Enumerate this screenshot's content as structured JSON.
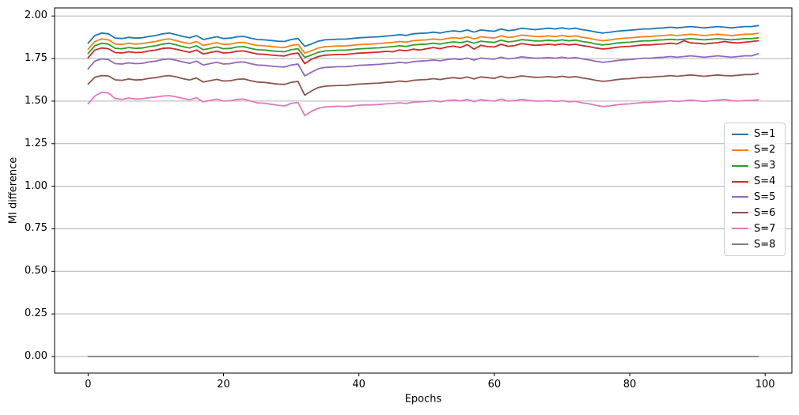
{
  "chart_data": {
    "type": "line",
    "title": "",
    "xlabel": "Epochs",
    "ylabel": "MI difference",
    "x_start": 0,
    "x_step": 1,
    "n_points": 100,
    "xlim": [
      -4.95,
      103.95
    ],
    "ylim": [
      -0.0975,
      2.0475
    ],
    "grid": "horizontal",
    "grid_color": "#b0b0b0",
    "spine_color": "#000000",
    "x_ticks": [
      {
        "v": 0,
        "label": "0"
      },
      {
        "v": 20,
        "label": "20"
      },
      {
        "v": 40,
        "label": "40"
      },
      {
        "v": 60,
        "label": "60"
      },
      {
        "v": 80,
        "label": "80"
      },
      {
        "v": 100,
        "label": "100"
      }
    ],
    "y_ticks": [
      {
        "v": 0.0,
        "label": "0.00"
      },
      {
        "v": 0.25,
        "label": "0.25"
      },
      {
        "v": 0.5,
        "label": "0.50"
      },
      {
        "v": 0.75,
        "label": "0.75"
      },
      {
        "v": 1.0,
        "label": "1.00"
      },
      {
        "v": 1.25,
        "label": "1.25"
      },
      {
        "v": 1.5,
        "label": "1.50"
      },
      {
        "v": 1.75,
        "label": "1.75"
      },
      {
        "v": 2.0,
        "label": "2.00"
      }
    ],
    "legend": {
      "position": "center-right",
      "border_color": "#cccccc"
    },
    "series": [
      {
        "name": "S=1",
        "color": "#1f77b4",
        "values": [
          1.84,
          1.885,
          1.9,
          1.895,
          1.87,
          1.868,
          1.875,
          1.87,
          1.872,
          1.88,
          1.885,
          1.895,
          1.9,
          1.89,
          1.88,
          1.872,
          1.885,
          1.862,
          1.87,
          1.878,
          1.868,
          1.87,
          1.878,
          1.88,
          1.87,
          1.862,
          1.86,
          1.856,
          1.852,
          1.85,
          1.862,
          1.868,
          1.822,
          1.836,
          1.852,
          1.86,
          1.862,
          1.864,
          1.864,
          1.868,
          1.872,
          1.874,
          1.876,
          1.878,
          1.882,
          1.885,
          1.89,
          1.886,
          1.895,
          1.898,
          1.9,
          1.905,
          1.9,
          1.908,
          1.913,
          1.908,
          1.918,
          1.905,
          1.918,
          1.914,
          1.91,
          1.924,
          1.914,
          1.918,
          1.928,
          1.924,
          1.92,
          1.924,
          1.928,
          1.924,
          1.93,
          1.924,
          1.928,
          1.92,
          1.914,
          1.906,
          1.9,
          1.904,
          1.91,
          1.914,
          1.916,
          1.92,
          1.924,
          1.924,
          1.928,
          1.93,
          1.934,
          1.93,
          1.934,
          1.938,
          1.934,
          1.93,
          1.934,
          1.938,
          1.934,
          1.93,
          1.934,
          1.938,
          1.938,
          1.944
        ]
      },
      {
        "name": "S=2",
        "color": "#ff7f0e",
        "values": [
          1.805,
          1.85,
          1.866,
          1.86,
          1.835,
          1.833,
          1.84,
          1.835,
          1.838,
          1.845,
          1.85,
          1.86,
          1.866,
          1.855,
          1.845,
          1.838,
          1.85,
          1.827,
          1.835,
          1.843,
          1.833,
          1.835,
          1.843,
          1.845,
          1.835,
          1.827,
          1.825,
          1.821,
          1.817,
          1.815,
          1.827,
          1.833,
          1.782,
          1.796,
          1.812,
          1.82,
          1.822,
          1.824,
          1.824,
          1.828,
          1.832,
          1.834,
          1.836,
          1.838,
          1.842,
          1.845,
          1.85,
          1.846,
          1.855,
          1.858,
          1.86,
          1.865,
          1.86,
          1.868,
          1.873,
          1.868,
          1.878,
          1.865,
          1.878,
          1.874,
          1.87,
          1.884,
          1.874,
          1.878,
          1.888,
          1.884,
          1.88,
          1.879,
          1.883,
          1.879,
          1.885,
          1.879,
          1.883,
          1.875,
          1.869,
          1.861,
          1.855,
          1.859,
          1.865,
          1.869,
          1.871,
          1.875,
          1.879,
          1.879,
          1.883,
          1.885,
          1.889,
          1.885,
          1.889,
          1.893,
          1.889,
          1.885,
          1.889,
          1.893,
          1.889,
          1.885,
          1.889,
          1.893,
          1.893,
          1.899
        ]
      },
      {
        "name": "S=3",
        "color": "#2ca02c",
        "values": [
          1.78,
          1.825,
          1.84,
          1.835,
          1.81,
          1.808,
          1.815,
          1.81,
          1.812,
          1.82,
          1.825,
          1.835,
          1.84,
          1.83,
          1.82,
          1.812,
          1.825,
          1.802,
          1.81,
          1.818,
          1.808,
          1.81,
          1.818,
          1.82,
          1.81,
          1.802,
          1.8,
          1.796,
          1.792,
          1.79,
          1.802,
          1.808,
          1.757,
          1.771,
          1.787,
          1.795,
          1.797,
          1.799,
          1.799,
          1.803,
          1.807,
          1.809,
          1.811,
          1.813,
          1.817,
          1.82,
          1.825,
          1.821,
          1.83,
          1.833,
          1.835,
          1.84,
          1.835,
          1.843,
          1.848,
          1.843,
          1.852,
          1.84,
          1.852,
          1.848,
          1.845,
          1.858,
          1.848,
          1.852,
          1.861,
          1.858,
          1.853,
          1.854,
          1.858,
          1.854,
          1.86,
          1.854,
          1.858,
          1.85,
          1.844,
          1.836,
          1.83,
          1.834,
          1.84,
          1.844,
          1.846,
          1.85,
          1.854,
          1.854,
          1.858,
          1.86,
          1.863,
          1.86,
          1.863,
          1.867,
          1.863,
          1.86,
          1.863,
          1.867,
          1.863,
          1.86,
          1.863,
          1.867,
          1.867,
          1.872
        ]
      },
      {
        "name": "S=4",
        "color": "#d62728",
        "values": [
          1.755,
          1.8,
          1.812,
          1.808,
          1.785,
          1.783,
          1.79,
          1.785,
          1.787,
          1.795,
          1.8,
          1.81,
          1.812,
          1.805,
          1.795,
          1.787,
          1.8,
          1.777,
          1.785,
          1.793,
          1.783,
          1.785,
          1.793,
          1.795,
          1.785,
          1.777,
          1.775,
          1.771,
          1.767,
          1.765,
          1.777,
          1.783,
          1.72,
          1.746,
          1.762,
          1.77,
          1.772,
          1.774,
          1.774,
          1.778,
          1.782,
          1.784,
          1.786,
          1.788,
          1.792,
          1.79,
          1.8,
          1.796,
          1.805,
          1.8,
          1.808,
          1.815,
          1.808,
          1.818,
          1.823,
          1.815,
          1.832,
          1.805,
          1.828,
          1.82,
          1.818,
          1.834,
          1.822,
          1.826,
          1.838,
          1.832,
          1.828,
          1.83,
          1.834,
          1.83,
          1.836,
          1.83,
          1.834,
          1.826,
          1.82,
          1.812,
          1.806,
          1.81,
          1.816,
          1.82,
          1.822,
          1.826,
          1.83,
          1.83,
          1.834,
          1.836,
          1.84,
          1.836,
          1.855,
          1.842,
          1.84,
          1.836,
          1.84,
          1.843,
          1.85,
          1.844,
          1.842,
          1.846,
          1.85,
          1.855
        ]
      },
      {
        "name": "S=5",
        "color": "#9467bd",
        "values": [
          1.69,
          1.735,
          1.748,
          1.744,
          1.72,
          1.718,
          1.725,
          1.72,
          1.722,
          1.73,
          1.735,
          1.744,
          1.748,
          1.74,
          1.73,
          1.722,
          1.735,
          1.712,
          1.72,
          1.728,
          1.718,
          1.72,
          1.728,
          1.73,
          1.72,
          1.712,
          1.71,
          1.706,
          1.702,
          1.7,
          1.712,
          1.718,
          1.648,
          1.67,
          1.69,
          1.698,
          1.7,
          1.702,
          1.702,
          1.706,
          1.71,
          1.712,
          1.714,
          1.716,
          1.72,
          1.722,
          1.728,
          1.724,
          1.732,
          1.735,
          1.737,
          1.742,
          1.737,
          1.744,
          1.749,
          1.744,
          1.753,
          1.741,
          1.753,
          1.749,
          1.746,
          1.758,
          1.748,
          1.752,
          1.76,
          1.756,
          1.752,
          1.753,
          1.756,
          1.752,
          1.758,
          1.752,
          1.756,
          1.748,
          1.742,
          1.734,
          1.728,
          1.732,
          1.738,
          1.742,
          1.744,
          1.748,
          1.752,
          1.752,
          1.756,
          1.758,
          1.762,
          1.758,
          1.762,
          1.766,
          1.762,
          1.758,
          1.762,
          1.766,
          1.762,
          1.758,
          1.762,
          1.766,
          1.766,
          1.778
        ]
      },
      {
        "name": "S=6",
        "color": "#8c564b",
        "values": [
          1.6,
          1.64,
          1.65,
          1.648,
          1.625,
          1.622,
          1.63,
          1.624,
          1.626,
          1.634,
          1.638,
          1.646,
          1.65,
          1.642,
          1.632,
          1.624,
          1.636,
          1.612,
          1.62,
          1.628,
          1.618,
          1.62,
          1.628,
          1.63,
          1.62,
          1.612,
          1.61,
          1.605,
          1.6,
          1.598,
          1.61,
          1.616,
          1.535,
          1.56,
          1.58,
          1.588,
          1.59,
          1.592,
          1.592,
          1.596,
          1.6,
          1.602,
          1.604,
          1.606,
          1.61,
          1.612,
          1.618,
          1.614,
          1.622,
          1.625,
          1.627,
          1.632,
          1.627,
          1.634,
          1.638,
          1.633,
          1.642,
          1.63,
          1.642,
          1.638,
          1.634,
          1.646,
          1.636,
          1.64,
          1.648,
          1.644,
          1.64,
          1.641,
          1.644,
          1.64,
          1.646,
          1.64,
          1.644,
          1.636,
          1.63,
          1.622,
          1.616,
          1.62,
          1.626,
          1.63,
          1.632,
          1.636,
          1.64,
          1.64,
          1.644,
          1.646,
          1.65,
          1.646,
          1.65,
          1.654,
          1.65,
          1.646,
          1.65,
          1.654,
          1.65,
          1.648,
          1.652,
          1.656,
          1.656,
          1.662
        ]
      },
      {
        "name": "S=7",
        "color": "#e377c2",
        "values": [
          1.485,
          1.53,
          1.552,
          1.548,
          1.515,
          1.51,
          1.518,
          1.512,
          1.514,
          1.52,
          1.524,
          1.53,
          1.532,
          1.525,
          1.516,
          1.508,
          1.52,
          1.496,
          1.504,
          1.512,
          1.5,
          1.502,
          1.51,
          1.512,
          1.5,
          1.49,
          1.488,
          1.482,
          1.476,
          1.472,
          1.486,
          1.492,
          1.415,
          1.44,
          1.458,
          1.466,
          1.468,
          1.47,
          1.468,
          1.472,
          1.476,
          1.478,
          1.478,
          1.48,
          1.484,
          1.486,
          1.49,
          1.486,
          1.494,
          1.496,
          1.498,
          1.502,
          1.496,
          1.503,
          1.507,
          1.501,
          1.51,
          1.497,
          1.509,
          1.504,
          1.5,
          1.512,
          1.5,
          1.503,
          1.51,
          1.505,
          1.5,
          1.5,
          1.503,
          1.498,
          1.503,
          1.496,
          1.499,
          1.49,
          1.484,
          1.475,
          1.468,
          1.472,
          1.478,
          1.482,
          1.484,
          1.488,
          1.492,
          1.492,
          1.496,
          1.498,
          1.502,
          1.498,
          1.502,
          1.506,
          1.502,
          1.498,
          1.502,
          1.506,
          1.51,
          1.504,
          1.5,
          1.504,
          1.504,
          1.508
        ]
      },
      {
        "name": "S=8",
        "color": "#7f7f7f",
        "values": [
          0,
          0,
          0,
          0,
          0,
          0,
          0,
          0,
          0,
          0,
          0,
          0,
          0,
          0,
          0,
          0,
          0,
          0,
          0,
          0,
          0,
          0,
          0,
          0,
          0,
          0,
          0,
          0,
          0,
          0,
          0,
          0,
          0,
          0,
          0,
          0,
          0,
          0,
          0,
          0,
          0,
          0,
          0,
          0,
          0,
          0,
          0,
          0,
          0,
          0,
          0,
          0,
          0,
          0,
          0,
          0,
          0,
          0,
          0,
          0,
          0,
          0,
          0,
          0,
          0,
          0,
          0,
          0,
          0,
          0,
          0,
          0,
          0,
          0,
          0,
          0,
          0,
          0,
          0,
          0,
          0,
          0,
          0,
          0,
          0,
          0,
          0,
          0,
          0,
          0,
          0,
          0,
          0,
          0,
          0,
          0,
          0,
          0,
          0,
          0
        ]
      }
    ]
  }
}
